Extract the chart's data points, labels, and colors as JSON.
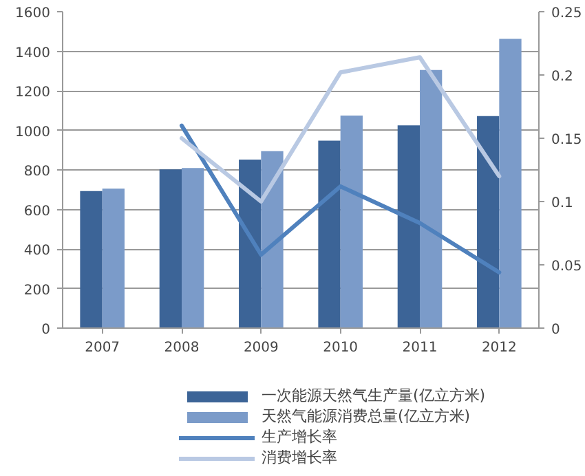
{
  "chart_data": {
    "type": "bar",
    "categories": [
      "2007",
      "2008",
      "2009",
      "2010",
      "2011",
      "2012"
    ],
    "series": [
      {
        "name": "一次能源天然气生产量(亿立方米)",
        "color": "#3c6497",
        "values": [
          693,
          803,
          852,
          948,
          1025,
          1072
        ]
      },
      {
        "name": "天然气能源消费总量(亿立方米)",
        "color": "#7b9bc9",
        "values": [
          705,
          810,
          895,
          1075,
          1305,
          1463
        ]
      },
      {
        "name": "生产增长率",
        "type": "line",
        "axis": "y2",
        "color": "#4f81bd",
        "values": [
          null,
          0.16,
          0.058,
          0.112,
          0.083,
          0.044
        ]
      },
      {
        "name": "消费增长率",
        "type": "line",
        "axis": "y2",
        "color": "#b9c9e3",
        "values": [
          null,
          0.15,
          0.1,
          0.202,
          0.214,
          0.12
        ]
      }
    ],
    "ylim": [
      0,
      1600
    ],
    "yticks": [
      0,
      200,
      400,
      600,
      800,
      1000,
      1200,
      1400,
      1600
    ],
    "y2lim": [
      0,
      0.25
    ],
    "y2ticks": [
      0,
      0.05,
      0.1,
      0.15,
      0.2,
      0.25
    ],
    "grid": "y",
    "legend": "bottom",
    "marker": "none",
    "line_style": "solid"
  }
}
